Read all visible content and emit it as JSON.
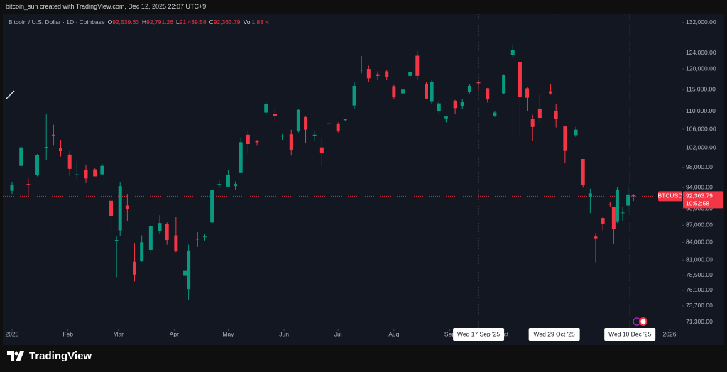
{
  "header": {
    "caption": "bitcoin_sun created with TradingView.com, Dec 12, 2025 22:07 UTC+9"
  },
  "footer": {
    "brand": "TradingView"
  },
  "chart_data": {
    "type": "candlestick",
    "title": "Bitcoin / U.S. Dollar · 1D · Coinbase",
    "ohlc_legend": [
      {
        "label": "O",
        "value": "92,539.63"
      },
      {
        "label": "H",
        "value": "92,791.26"
      },
      {
        "label": "L",
        "value": "91,439.58"
      },
      {
        "label": "C",
        "value": "92,363.79"
      },
      {
        "label": "Vol",
        "value": "1.83 K"
      }
    ],
    "symbol": "BTCUSD",
    "last_price": {
      "value": 92363.79,
      "label": "92,363.79"
    },
    "countdown": "10:52:58",
    "up_color": "#089981",
    "down_color": "#f23645",
    "log_scale": true,
    "grid": false,
    "xlim": [
      "2025-01-01",
      "2026-01-01"
    ],
    "xticks": [
      {
        "value": "2025-01-01",
        "label": "2025"
      },
      {
        "value": "2025-02-01",
        "label": "Feb"
      },
      {
        "value": "2025-03-01",
        "label": "Mar"
      },
      {
        "value": "2025-04-01",
        "label": "Apr"
      },
      {
        "value": "2025-05-01",
        "label": "May"
      },
      {
        "value": "2025-06-01",
        "label": "Jun"
      },
      {
        "value": "2025-07-01",
        "label": "Jul"
      },
      {
        "value": "2025-08-01",
        "label": "Aug"
      },
      {
        "value": "2025-09-01",
        "label": "Sep"
      },
      {
        "value": "2025-10-01",
        "label": "Oct"
      },
      {
        "value": "2026-01-01",
        "label": "2026"
      }
    ],
    "markers": [
      {
        "value": "2025-09-17",
        "label": "Wed 17 Sep '25"
      },
      {
        "value": "2025-10-29",
        "label": "Wed 29 Oct '25"
      },
      {
        "value": "2025-12-10",
        "label": "Wed 10 Dec '25"
      }
    ],
    "ylim": [
      68100,
      134300
    ],
    "yticks": [
      {
        "value": 132000,
        "label": "132,000.00"
      },
      {
        "value": 124000,
        "label": "124,000.00"
      },
      {
        "value": 120000,
        "label": "120,000.00"
      },
      {
        "value": 115000,
        "label": "115,000.00"
      },
      {
        "value": 110000,
        "label": "110,000.00"
      },
      {
        "value": 106000,
        "label": "106,000.00"
      },
      {
        "value": 102000,
        "label": "102,000.00"
      },
      {
        "value": 98000,
        "label": "98,000.00"
      },
      {
        "value": 94000,
        "label": "94,000.00"
      },
      {
        "value": 90000,
        "label": "90,000.00"
      },
      {
        "value": 87000,
        "label": "87,000.00"
      },
      {
        "value": 84000,
        "label": "84,000.00"
      },
      {
        "value": 81000,
        "label": "81,000.00"
      },
      {
        "value": 78500,
        "label": "78,500.00"
      },
      {
        "value": 76100,
        "label": "76,100.00"
      },
      {
        "value": 73700,
        "label": "73,700.00"
      },
      {
        "value": 71300,
        "label": "71,300.00"
      }
    ],
    "x": [
      "2025-01-01",
      "2025-01-06",
      "2025-01-10",
      "2025-01-15",
      "2025-01-20",
      "2025-01-24",
      "2025-01-28",
      "2025-02-02",
      "2025-02-06",
      "2025-02-11",
      "2025-02-16",
      "2025-02-20",
      "2025-02-25",
      "2025-02-28",
      "2025-03-02",
      "2025-03-06",
      "2025-03-10",
      "2025-03-14",
      "2025-03-19",
      "2025-03-24",
      "2025-03-28",
      "2025-04-02",
      "2025-04-07",
      "2025-04-09",
      "2025-04-14",
      "2025-04-18",
      "2025-04-22",
      "2025-04-26",
      "2025-05-01",
      "2025-05-05",
      "2025-05-08",
      "2025-05-12",
      "2025-05-17",
      "2025-05-22",
      "2025-05-27",
      "2025-05-31",
      "2025-06-05",
      "2025-06-09",
      "2025-06-13",
      "2025-06-18",
      "2025-06-22",
      "2025-06-26",
      "2025-07-01",
      "2025-07-05",
      "2025-07-10",
      "2025-07-14",
      "2025-07-18",
      "2025-07-23",
      "2025-07-28",
      "2025-08-01",
      "2025-08-06",
      "2025-08-10",
      "2025-08-14",
      "2025-08-19",
      "2025-08-22",
      "2025-08-26",
      "2025-08-30",
      "2025-09-04",
      "2025-09-08",
      "2025-09-12",
      "2025-09-17",
      "2025-09-22",
      "2025-09-26",
      "2025-10-01",
      "2025-10-06",
      "2025-10-10",
      "2025-10-14",
      "2025-10-17",
      "2025-10-21",
      "2025-10-27",
      "2025-10-30",
      "2025-11-04",
      "2025-11-10",
      "2025-11-14",
      "2025-11-18",
      "2025-11-21",
      "2025-11-25",
      "2025-11-29",
      "2025-12-01",
      "2025-12-03",
      "2025-12-06",
      "2025-12-09",
      "2025-12-12"
    ],
    "open": [
      93400,
      98300,
      94700,
      96500,
      102000,
      104800,
      101900,
      100600,
      96600,
      97400,
      97600,
      96600,
      91500,
      84300,
      86100,
      90600,
      80700,
      80900,
      82700,
      86000,
      87200,
      85200,
      78400,
      76300,
      84500,
      84900,
      87500,
      94600,
      94200,
      94300,
      97000,
      104800,
      103500,
      109700,
      109400,
      104600,
      104900,
      105700,
      108700,
      104600,
      102100,
      107300,
      107100,
      108000,
      111300,
      119800,
      120000,
      118700,
      119400,
      115800,
      114100,
      118300,
      123300,
      116300,
      112300,
      110100,
      108400,
      112400,
      111100,
      114400,
      116800,
      115300,
      109000,
      114100,
      123500,
      121700,
      115300,
      108200,
      110600,
      114600,
      110000,
      106600,
      104700,
      99700,
      92200,
      85000,
      88300,
      90900,
      90400,
      87600,
      89300,
      90600,
      92539.63
    ],
    "high": [
      95000,
      102500,
      95800,
      100700,
      109300,
      107000,
      103700,
      101400,
      99200,
      98500,
      97800,
      98700,
      92500,
      85000,
      95000,
      92800,
      83900,
      85200,
      87000,
      88800,
      87500,
      88500,
      81200,
      83600,
      85800,
      85500,
      93800,
      95400,
      97400,
      95200,
      104000,
      105800,
      103700,
      112000,
      110700,
      104900,
      105900,
      110600,
      108800,
      105500,
      103900,
      108300,
      107500,
      108300,
      116800,
      123200,
      120800,
      119400,
      119800,
      116100,
      115700,
      119300,
      124500,
      116800,
      117400,
      112400,
      108800,
      112600,
      112800,
      116300,
      117300,
      115400,
      110000,
      118700,
      126200,
      122600,
      115500,
      109200,
      114000,
      116400,
      111600,
      106800,
      106500,
      99700,
      93800,
      85600,
      88500,
      91200,
      90400,
      94100,
      90300,
      94600,
      92791.26
    ],
    "low": [
      92800,
      97800,
      92500,
      96200,
      99500,
      102600,
      100200,
      96200,
      95700,
      94900,
      96200,
      96500,
      86100,
      78200,
      85100,
      87800,
      77500,
      80700,
      82000,
      85500,
      83600,
      82300,
      74500,
      74600,
      83200,
      84300,
      87100,
      93900,
      94100,
      93500,
      96900,
      100800,
      102600,
      109200,
      107600,
      103700,
      100400,
      105300,
      103000,
      103500,
      98200,
      106600,
      105300,
      107700,
      110500,
      118900,
      116800,
      117300,
      117400,
      112700,
      113400,
      118100,
      117200,
      112700,
      111700,
      109300,
      107500,
      109300,
      110600,
      114100,
      114800,
      112000,
      108700,
      113900,
      123000,
      104600,
      110000,
      103500,
      107500,
      113800,
      106400,
      98900,
      104300,
      94000,
      89200,
      80600,
      86100,
      90400,
      83800,
      87400,
      87800,
      89600,
      91439.58
    ],
    "close": [
      94600,
      102100,
      94500,
      100500,
      102200,
      104700,
      101300,
      97700,
      96600,
      95800,
      96200,
      98300,
      88700,
      84400,
      94300,
      89900,
      78600,
      84000,
      86900,
      87400,
      84400,
      82500,
      79200,
      82600,
      84600,
      85000,
      93500,
      94700,
      96500,
      94700,
      103200,
      102800,
      103200,
      111700,
      108900,
      104600,
      101600,
      110300,
      105900,
      104800,
      100900,
      107200,
      105700,
      108200,
      115900,
      119800,
      117700,
      118300,
      118000,
      113300,
      115000,
      119300,
      118300,
      112900,
      116900,
      111800,
      108800,
      110700,
      112100,
      115900,
      116500,
      112700,
      109700,
      118600,
      124700,
      113200,
      113100,
      106500,
      108500,
      114100,
      108300,
      101500,
      105900,
      94500,
      92900,
      84700,
      87300,
      90800,
      86300,
      93500,
      89300,
      92700,
      92363.79
    ]
  }
}
